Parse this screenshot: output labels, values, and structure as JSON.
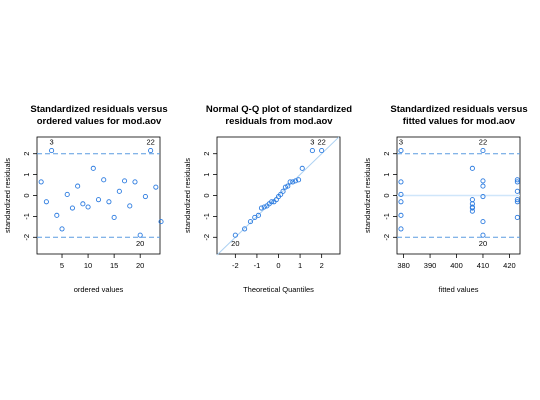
{
  "colors": {
    "points": "#2b7be0",
    "ref_line": "#5a9be0",
    "qq_line": "#aed2f2",
    "zero_line": "#cfe6fa",
    "axis": "#000000"
  },
  "chart_data": [
    {
      "type": "scatter",
      "title_lines": [
        "Standardized residuals versus",
        "ordered values for mod.aov"
      ],
      "xlabel": "ordered values",
      "ylabel": "standardized residuals",
      "xlim": [
        0.2,
        23.8
      ],
      "ylim": [
        -2.8,
        2.8
      ],
      "xticks": [
        5,
        10,
        15,
        20
      ],
      "yticks": [
        -2,
        -1,
        0,
        1,
        2
      ],
      "ref_lines": [
        2,
        -2
      ],
      "x": [
        1,
        2,
        3,
        4,
        5,
        6,
        7,
        8,
        9,
        10,
        11,
        12,
        13,
        14,
        15,
        16,
        17,
        18,
        19,
        20,
        21,
        22,
        23,
        24
      ],
      "y": [
        0.65,
        -0.3,
        2.15,
        -0.95,
        -1.6,
        0.05,
        -0.6,
        0.45,
        -0.4,
        -0.55,
        1.3,
        -0.2,
        0.75,
        -0.3,
        -1.05,
        0.2,
        0.7,
        -0.5,
        0.65,
        -1.9,
        -0.05,
        2.15,
        0.4,
        -1.25
      ],
      "point_labels": [
        {
          "label": "3",
          "x": 3,
          "y": 2.15,
          "pos": "above"
        },
        {
          "label": "22",
          "x": 22,
          "y": 2.15,
          "pos": "above"
        },
        {
          "label": "20",
          "x": 20,
          "y": -1.9,
          "pos": "below"
        }
      ]
    },
    {
      "type": "scatter",
      "title_lines": [
        "Normal Q-Q plot of standardized",
        "residuals from mod.aov"
      ],
      "xlabel": "Theoretical Quantiles",
      "ylabel": "standardized residuals",
      "xlim": [
        -2.85,
        2.85
      ],
      "ylim": [
        -2.8,
        2.8
      ],
      "xticks": [
        -2,
        -1,
        0,
        1,
        2
      ],
      "yticks": [
        -2,
        -1,
        0,
        1,
        2
      ],
      "qq_line": true,
      "x": [
        -2.0,
        -1.57,
        -1.3,
        -1.1,
        -0.93,
        -0.79,
        -0.66,
        -0.54,
        -0.43,
        -0.32,
        -0.21,
        -0.1,
        0.0,
        0.1,
        0.21,
        0.32,
        0.43,
        0.54,
        0.66,
        0.79,
        0.93,
        1.1,
        1.57,
        2.0
      ],
      "y": [
        -1.9,
        -1.6,
        -1.25,
        -1.05,
        -0.95,
        -0.6,
        -0.55,
        -0.5,
        -0.4,
        -0.3,
        -0.3,
        -0.2,
        -0.05,
        0.05,
        0.2,
        0.4,
        0.45,
        0.65,
        0.65,
        0.7,
        0.75,
        1.3,
        2.15,
        2.15
      ],
      "point_labels": [
        {
          "label": "3",
          "x": 1.57,
          "y": 2.15,
          "pos": "above"
        },
        {
          "label": "22",
          "x": 2.0,
          "y": 2.15,
          "pos": "above"
        },
        {
          "label": "20",
          "x": -2.0,
          "y": -1.9,
          "pos": "below"
        }
      ]
    },
    {
      "type": "scatter",
      "title_lines": [
        "Standardized residuals versus",
        "fitted values for mod.aov"
      ],
      "xlabel": "fitted values",
      "ylabel": "standardized residuals",
      "xlim": [
        377.5,
        424
      ],
      "ylim": [
        -2.8,
        2.8
      ],
      "xticks": [
        380,
        390,
        400,
        410,
        420
      ],
      "yticks": [
        -2,
        -1,
        0,
        1,
        2
      ],
      "ref_lines": [
        2,
        -2
      ],
      "zero_line": true,
      "x": [
        379,
        379,
        379,
        379,
        379,
        379,
        406,
        406,
        406,
        406,
        406,
        406,
        410,
        410,
        410,
        410,
        410,
        410,
        423,
        423,
        423,
        423,
        423,
        423
      ],
      "y": [
        2.15,
        0.65,
        0.05,
        -0.3,
        -0.95,
        -1.6,
        1.3,
        -0.2,
        -0.4,
        -0.55,
        -0.6,
        -0.75,
        2.15,
        0.7,
        0.45,
        -0.05,
        -1.25,
        -1.9,
        0.75,
        0.65,
        0.2,
        -0.2,
        -0.3,
        -1.05
      ],
      "point_labels": [
        {
          "label": "3",
          "x": 379,
          "y": 2.15,
          "pos": "above"
        },
        {
          "label": "22",
          "x": 410,
          "y": 2.15,
          "pos": "above"
        },
        {
          "label": "20",
          "x": 410,
          "y": -1.9,
          "pos": "below"
        }
      ]
    }
  ]
}
